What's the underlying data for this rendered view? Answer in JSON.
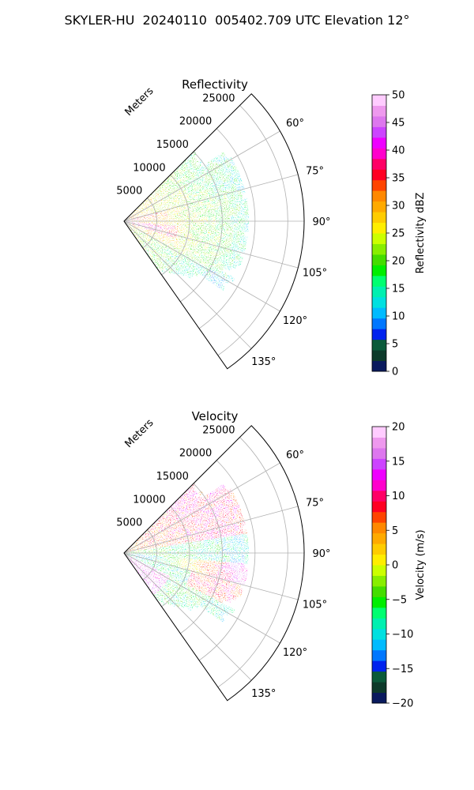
{
  "suptitle": "SKYLER-HU  20240110  005402.709 UTC Elevation 12°",
  "chart_data": [
    {
      "type": "heatmap",
      "projection": "polar-sector",
      "title": "Reflectivity",
      "radial_label": "Meters",
      "r_ticks": [
        5000,
        10000,
        15000,
        20000,
        25000
      ],
      "r_tick_labels": [
        "5000",
        "10000",
        "15000",
        "20000",
        "25000"
      ],
      "theta_range_deg": [
        45,
        145
      ],
      "theta_ticks": [
        60,
        75,
        90,
        105,
        120,
        135
      ],
      "theta_tick_labels": [
        "60°",
        "75°",
        "90°",
        "105°",
        "120°",
        "135°"
      ],
      "grid": true,
      "data_extent_m": [
        0,
        19000
      ],
      "colorbar": {
        "label": "Reflectivity dBZ",
        "range": [
          0,
          50
        ],
        "ticks": [
          0,
          5,
          10,
          15,
          20,
          25,
          30,
          35,
          40,
          45,
          50
        ],
        "tick_labels": [
          "0",
          "5",
          "10",
          "15",
          "20",
          "25",
          "30",
          "35",
          "40",
          "45",
          "50"
        ],
        "colors": [
          "#0a1a5e",
          "#0d3a2a",
          "#0a5a3a",
          "#0022ee",
          "#0077ff",
          "#00bbff",
          "#00e0e0",
          "#00f0b0",
          "#00ff70",
          "#00ee00",
          "#44dd00",
          "#88ee00",
          "#ccff00",
          "#ffee00",
          "#ffcc00",
          "#ffaa00",
          "#ff8800",
          "#ff4400",
          "#ff0022",
          "#ff0066",
          "#ff00cc",
          "#ee00ff",
          "#cc44ff",
          "#dd77ee",
          "#ee99ee",
          "#ffccff"
        ]
      }
    },
    {
      "type": "heatmap",
      "projection": "polar-sector",
      "title": "Velocity",
      "radial_label": "Meters",
      "r_ticks": [
        5000,
        10000,
        15000,
        20000,
        25000
      ],
      "r_tick_labels": [
        "5000",
        "10000",
        "15000",
        "20000",
        "25000"
      ],
      "theta_range_deg": [
        45,
        145
      ],
      "theta_ticks": [
        60,
        75,
        90,
        105,
        120,
        135
      ],
      "theta_tick_labels": [
        "60°",
        "75°",
        "90°",
        "105°",
        "120°",
        "135°"
      ],
      "grid": true,
      "data_extent_m": [
        0,
        19000
      ],
      "colorbar": {
        "label": "Velocity (m/s)",
        "range": [
          -20,
          20
        ],
        "ticks": [
          -20,
          -15,
          -10,
          -5,
          0,
          5,
          10,
          15,
          20
        ],
        "tick_labels": [
          "−20",
          "−15",
          "−10",
          "−5",
          "0",
          "5",
          "10",
          "15",
          "20"
        ],
        "colors": [
          "#0a1a5e",
          "#0d3a2a",
          "#0a5a3a",
          "#0022ee",
          "#0077ff",
          "#00bbff",
          "#00e0e0",
          "#00f0b0",
          "#00ff70",
          "#00ee00",
          "#44dd00",
          "#88ee00",
          "#ccff00",
          "#ffee00",
          "#ffcc00",
          "#ffaa00",
          "#ff8800",
          "#ff4400",
          "#ff0022",
          "#ff0066",
          "#ff00cc",
          "#ee00ff",
          "#cc44ff",
          "#dd77ee",
          "#ee99ee",
          "#ffccff"
        ]
      }
    }
  ]
}
